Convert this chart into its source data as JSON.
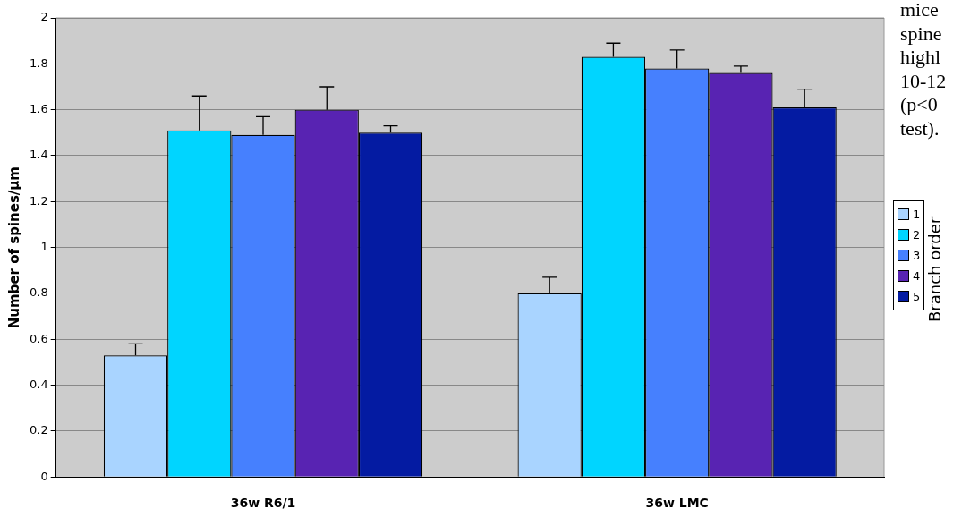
{
  "chart_data": {
    "type": "bar",
    "ylabel": "Number of spines/µm",
    "categories": [
      "36w R6/1",
      "36w LMC"
    ],
    "legend_title": "Branch order",
    "legend": "right",
    "grid": "y",
    "ylim": [
      0,
      2
    ],
    "yticks": [
      0,
      {
        "value": 0.2,
        "label": "0.2"
      },
      {
        "value": 0.4,
        "label": "0.4"
      },
      {
        "value": 0.6,
        "label": "0.6"
      },
      {
        "value": 0.8,
        "label": "0.8"
      },
      1,
      {
        "value": 1.2,
        "label": "1.2"
      },
      {
        "value": 1.4,
        "label": "1.4"
      },
      {
        "value": 1.6,
        "label": "1.6"
      },
      {
        "value": 1.8,
        "label": "1.8"
      },
      2
    ],
    "series": [
      {
        "name": "1",
        "color": "#a9d4ff",
        "values": [
          0.53,
          0.8
        ],
        "errors": [
          [
            0.53,
            0.58
          ],
          [
            0.8,
            0.87
          ]
        ]
      },
      {
        "name": "2",
        "color": "#00d5ff",
        "values": [
          1.51,
          1.83
        ],
        "errors": [
          [
            1.51,
            1.66
          ],
          [
            1.83,
            1.89
          ]
        ]
      },
      {
        "name": "3",
        "color": "#4680fe",
        "values": [
          1.49,
          1.78
        ],
        "errors": [
          [
            1.49,
            1.57
          ],
          [
            1.78,
            1.86
          ]
        ]
      },
      {
        "name": "4",
        "color": "#5823b2",
        "values": [
          1.6,
          1.76
        ],
        "errors": [
          [
            1.6,
            1.7
          ],
          [
            1.76,
            1.79
          ]
        ]
      },
      {
        "name": "5",
        "color": "#041ba2",
        "values": [
          1.5,
          1.61
        ],
        "errors": [
          [
            1.5,
            1.53
          ],
          [
            1.61,
            1.69
          ]
        ]
      }
    ],
    "annotations": [
      "mice",
      "spine",
      "highl",
      "10-12",
      "(p<0",
      "test)."
    ]
  }
}
